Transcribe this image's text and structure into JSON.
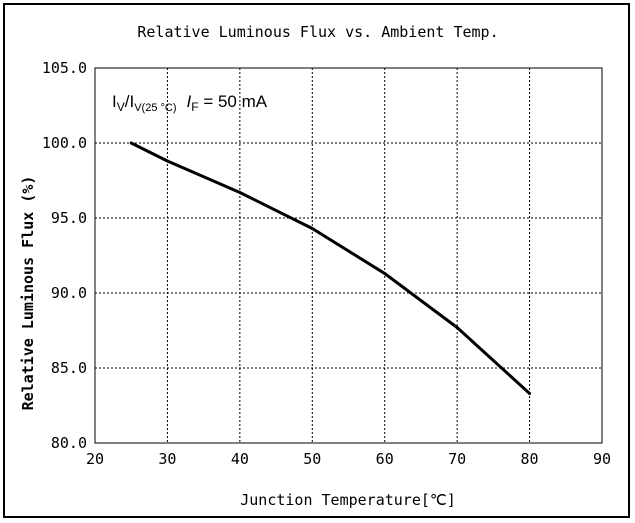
{
  "chart_data": {
    "type": "line",
    "title": "Relative Luminous Flux vs. Ambient Temp.",
    "xlabel": "Junction Temperature[℃]",
    "ylabel": "Relative Luminous Flux (%)",
    "xlim": [
      20,
      90
    ],
    "ylim": [
      80,
      105
    ],
    "x_ticks": [
      "20",
      "30",
      "40",
      "50",
      "60",
      "70",
      "80",
      "90"
    ],
    "y_ticks": [
      "80.0",
      "85.0",
      "90.0",
      "95.0",
      "100.0",
      "105.0"
    ],
    "grid": true,
    "annotation": {
      "iv": "I",
      "iv_sub": "V",
      "slash": "/I",
      "iv25_sub": "V(25 °C)",
      "if": "I",
      "if_sub": "F",
      "if_value": " = 50 mA"
    },
    "series": [
      {
        "x": [
          25,
          30,
          40,
          50,
          60,
          70,
          80
        ],
        "y": [
          100.0,
          98.8,
          96.7,
          94.3,
          91.3,
          87.7,
          83.3
        ],
        "color": "#000000"
      }
    ]
  }
}
